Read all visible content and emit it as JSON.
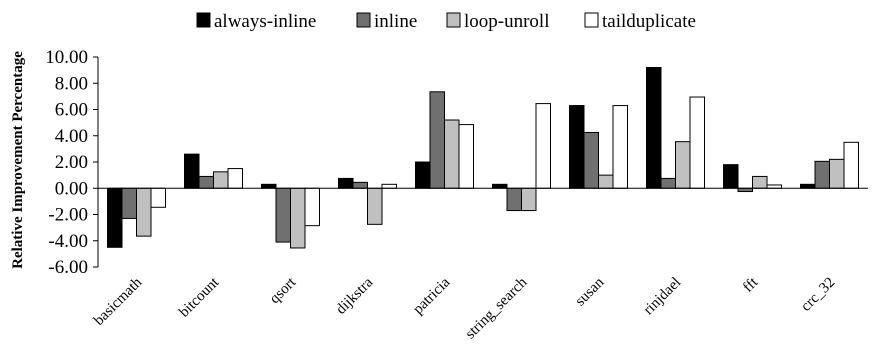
{
  "chart_data": {
    "type": "bar",
    "title": "",
    "xlabel": "",
    "ylabel": "Relative Improvement Percentage",
    "ylim": [
      -6,
      10
    ],
    "yticks": [
      "-6.00",
      "-4.00",
      "-2.00",
      "0.00",
      "2.00",
      "4.00",
      "6.00",
      "8.00",
      "10.00"
    ],
    "grid": false,
    "legend_position": "top",
    "categories": [
      "basicmath",
      "bitcount",
      "qsort",
      "dijkstra",
      "patricia",
      "string_search",
      "susan",
      "rinjdael",
      "fft",
      "crc_32"
    ],
    "series": [
      {
        "name": "always-inline",
        "color": "#000000",
        "values": [
          -4.5,
          2.6,
          0.3,
          0.75,
          2.0,
          0.3,
          6.3,
          9.2,
          1.8,
          0.3
        ]
      },
      {
        "name": "inline",
        "color": "#707070",
        "values": [
          -2.3,
          0.9,
          -4.1,
          0.45,
          7.35,
          -1.7,
          4.25,
          0.75,
          -0.25,
          2.05
        ]
      },
      {
        "name": "loop-unroll",
        "color": "#c0c0c0",
        "values": [
          -3.65,
          1.25,
          -4.55,
          -2.75,
          5.2,
          -1.7,
          1.0,
          3.55,
          0.9,
          2.2
        ]
      },
      {
        "name": "tailduplicate",
        "color": "#ffffff",
        "values": [
          -1.45,
          1.5,
          -2.85,
          0.3,
          4.85,
          6.45,
          6.3,
          6.95,
          0.25,
          3.5
        ]
      }
    ]
  }
}
